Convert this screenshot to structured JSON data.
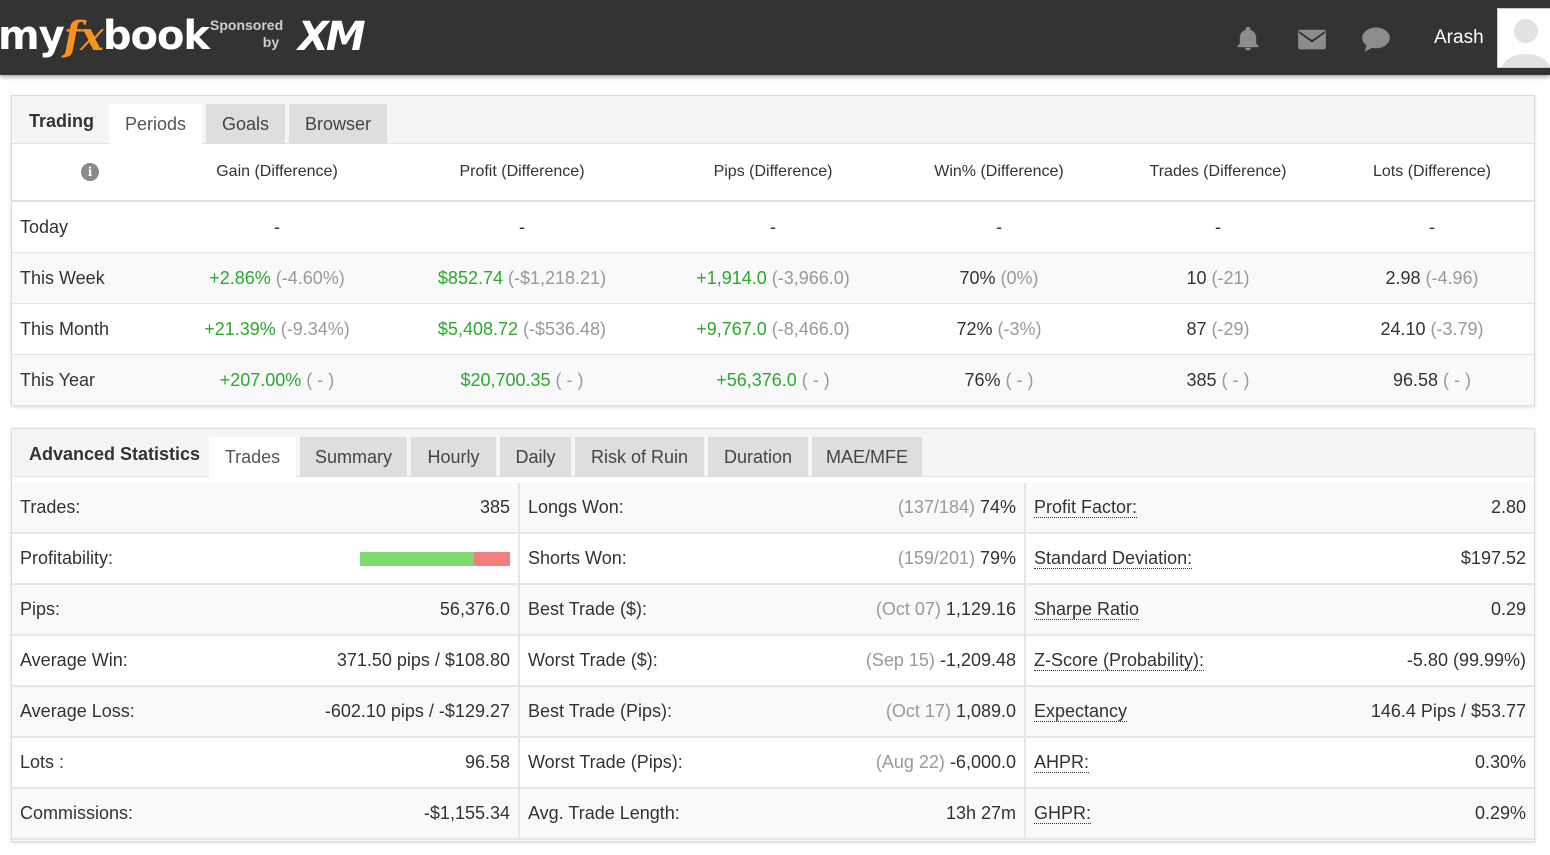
{
  "header": {
    "logo_my": "my",
    "logo_fx": "fx",
    "logo_book": "book",
    "sponsored": "Sponsored",
    "by": "by",
    "sponsor_brand": "XM",
    "username": "Arash",
    "icons": [
      "bell-icon",
      "envelope-icon",
      "chat-icon",
      "user-avatar-icon"
    ]
  },
  "trading_panel": {
    "title": "Trading",
    "tabs": [
      "Periods",
      "Goals",
      "Browser"
    ],
    "active_tab": "Periods",
    "columns": [
      "Gain (Difference)",
      "Profit (Difference)",
      "Pips (Difference)",
      "Win% (Difference)",
      "Trades (Difference)",
      "Lots (Difference)"
    ],
    "rows": [
      {
        "label": "Today",
        "cells": [
          {
            "main": "-",
            "diff": ""
          },
          {
            "main": "-",
            "diff": ""
          },
          {
            "main": "-",
            "diff": ""
          },
          {
            "main": "-",
            "diff": ""
          },
          {
            "main": "-",
            "diff": ""
          },
          {
            "main": "-",
            "diff": ""
          }
        ]
      },
      {
        "label": "This Week",
        "cells": [
          {
            "main": "+2.86%",
            "diff": "(-4.60%)"
          },
          {
            "main": "$852.74",
            "diff": "(-$1,218.21)"
          },
          {
            "main": "+1,914.0",
            "diff": "(-3,966.0)"
          },
          {
            "main": "70%",
            "diff": "(0%)"
          },
          {
            "main": "10",
            "diff": "(-21)"
          },
          {
            "main": "2.98",
            "diff": "(-4.96)"
          }
        ]
      },
      {
        "label": "This Month",
        "cells": [
          {
            "main": "+21.39%",
            "diff": "(-9.34%)"
          },
          {
            "main": "$5,408.72",
            "diff": "(-$536.48)"
          },
          {
            "main": "+9,767.0",
            "diff": "(-8,466.0)"
          },
          {
            "main": "72%",
            "diff": "(-3%)"
          },
          {
            "main": "87",
            "diff": "(-29)"
          },
          {
            "main": "24.10",
            "diff": "(-3.79)"
          }
        ]
      },
      {
        "label": "This Year",
        "cells": [
          {
            "main": "+207.00%",
            "diff": "( - )"
          },
          {
            "main": "$20,700.35",
            "diff": "( - )"
          },
          {
            "main": "+56,376.0",
            "diff": "( - )"
          },
          {
            "main": "76%",
            "diff": "( - )"
          },
          {
            "main": "385",
            "diff": "( - )"
          },
          {
            "main": "96.58",
            "diff": "( - )"
          }
        ]
      }
    ]
  },
  "advanced_panel": {
    "title": "Advanced Statistics",
    "tabs": [
      "Trades",
      "Summary",
      "Hourly",
      "Daily",
      "Risk of Ruin",
      "Duration",
      "MAE/MFE"
    ],
    "active_tab": "Trades",
    "col1": [
      {
        "label": "Trades:",
        "value": "385"
      },
      {
        "label": "Profitability:",
        "value": "",
        "bar_win_fraction": 0.76
      },
      {
        "label": "Pips:",
        "value": "56,376.0"
      },
      {
        "label": "Average Win:",
        "value": "371.50 pips / $108.80"
      },
      {
        "label": "Average Loss:",
        "value": "-602.10 pips / -$129.27"
      },
      {
        "label": "Lots :",
        "value": "96.58"
      },
      {
        "label": "Commissions:",
        "value": "-$1,155.34"
      }
    ],
    "col2": [
      {
        "label": "Longs Won:",
        "muted": "(137/184)",
        "value": "74%"
      },
      {
        "label": "Shorts Won:",
        "muted": "(159/201)",
        "value": "79%"
      },
      {
        "label": "Best Trade ($):",
        "muted": "(Oct 07)",
        "value": "1,129.16"
      },
      {
        "label": "Worst Trade ($):",
        "muted": "(Sep 15)",
        "value": "-1,209.48"
      },
      {
        "label": "Best Trade (Pips):",
        "muted": "(Oct 17)",
        "value": "1,089.0"
      },
      {
        "label": "Worst Trade (Pips):",
        "muted": "(Aug 22)",
        "value": "-6,000.0"
      },
      {
        "label": "Avg. Trade Length:",
        "muted": "",
        "value": "13h 27m"
      }
    ],
    "col3": [
      {
        "label": "Profit Factor:",
        "value": "2.80"
      },
      {
        "label": "Standard Deviation:",
        "value": "$197.52"
      },
      {
        "label": "Sharpe Ratio",
        "value": "0.29"
      },
      {
        "label": "Z-Score (Probability):",
        "value": "-5.80 (99.99%)"
      },
      {
        "label": "Expectancy",
        "value": "146.4 Pips / $53.77"
      },
      {
        "label": "AHPR:",
        "value": "0.30%"
      },
      {
        "label": "GHPR:",
        "value": "0.29%"
      }
    ]
  },
  "colors": {
    "positive": "#2aa92a",
    "muted": "#999999",
    "topbar": "#333333",
    "bar_win": "#7fdb6f",
    "bar_loss": "#f47d7d",
    "logo_accent": "#f7931e"
  }
}
